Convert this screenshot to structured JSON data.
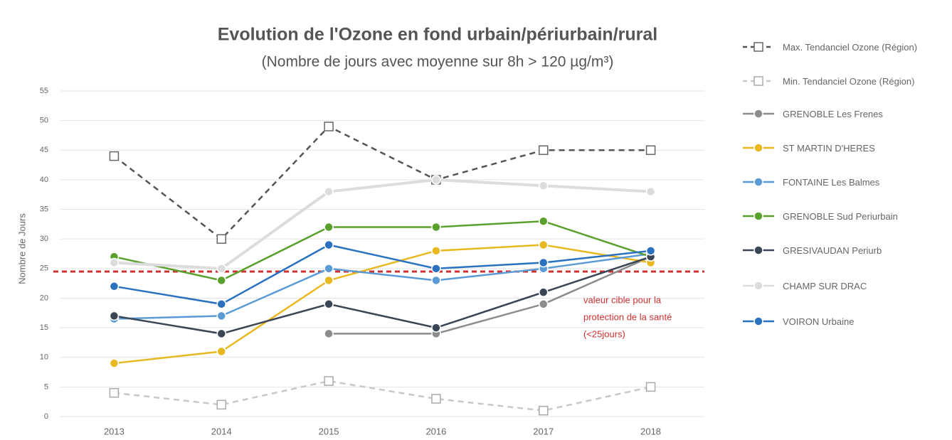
{
  "chart_data": {
    "type": "line",
    "title": "Evolution de l'Ozone en fond urbain/périurbain/rural",
    "subtitle": "(Nombre de jours avec moyenne sur 8h > 120 µg/m³)",
    "y_label": "Nombre de Jours",
    "categories": [
      "2013",
      "2014",
      "2015",
      "2016",
      "2017",
      "2018"
    ],
    "ylim": [
      0,
      55
    ],
    "yticks": [
      0,
      5,
      10,
      15,
      20,
      25,
      30,
      35,
      40,
      45,
      50,
      55
    ],
    "grid": true,
    "legend": "right",
    "series": [
      {
        "name": "Max. Tendanciel Ozone (Région)",
        "color": "#555555",
        "dashed": true,
        "marker": "square",
        "values": [
          44,
          30,
          49,
          40,
          45,
          45
        ]
      },
      {
        "name": "Min. Tendanciel Ozone (Région)",
        "color": "#c8c8c8",
        "dashed": true,
        "marker": "square",
        "values": [
          4,
          2,
          6,
          3,
          1,
          5
        ]
      },
      {
        "name": "GRENOBLE Les Frenes",
        "color": "#8c8c8c",
        "marker": "circle",
        "values": [
          16.5,
          null,
          14,
          14,
          19,
          27
        ]
      },
      {
        "name": "ST MARTIN D'HERES",
        "color": "#e8b820",
        "marker": "circle",
        "values": [
          9,
          11,
          23,
          28,
          29,
          26
        ]
      },
      {
        "name": "FONTAINE Les Balmes",
        "color": "#5b9bd5",
        "marker": "circle",
        "values": [
          16.5,
          17,
          25,
          23,
          25,
          27.5
        ]
      },
      {
        "name": "GRENOBLE Sud Periurbain",
        "color": "#5aa02c",
        "marker": "circle",
        "values": [
          27,
          23,
          32,
          32,
          33,
          27
        ]
      },
      {
        "name": "GRESIVAUDAN Periurb",
        "color": "#3a4556",
        "marker": "circle",
        "values": [
          17,
          14,
          19,
          15,
          21,
          27
        ]
      },
      {
        "name": "CHAMP SUR DRAC",
        "color": "#dcdcdc",
        "marker": "circle",
        "values": [
          26,
          25,
          38,
          40,
          39,
          38
        ]
      },
      {
        "name": "VOIRON Urbaine",
        "color": "#2a72c0",
        "marker": "circle",
        "values": [
          22,
          19,
          29,
          25,
          26,
          28
        ]
      }
    ],
    "target_line": {
      "value": 24.5,
      "color": "#d03030",
      "label": [
        "valeur cible pour la",
        "protection de la santé",
        "(<25jours)"
      ]
    }
  }
}
